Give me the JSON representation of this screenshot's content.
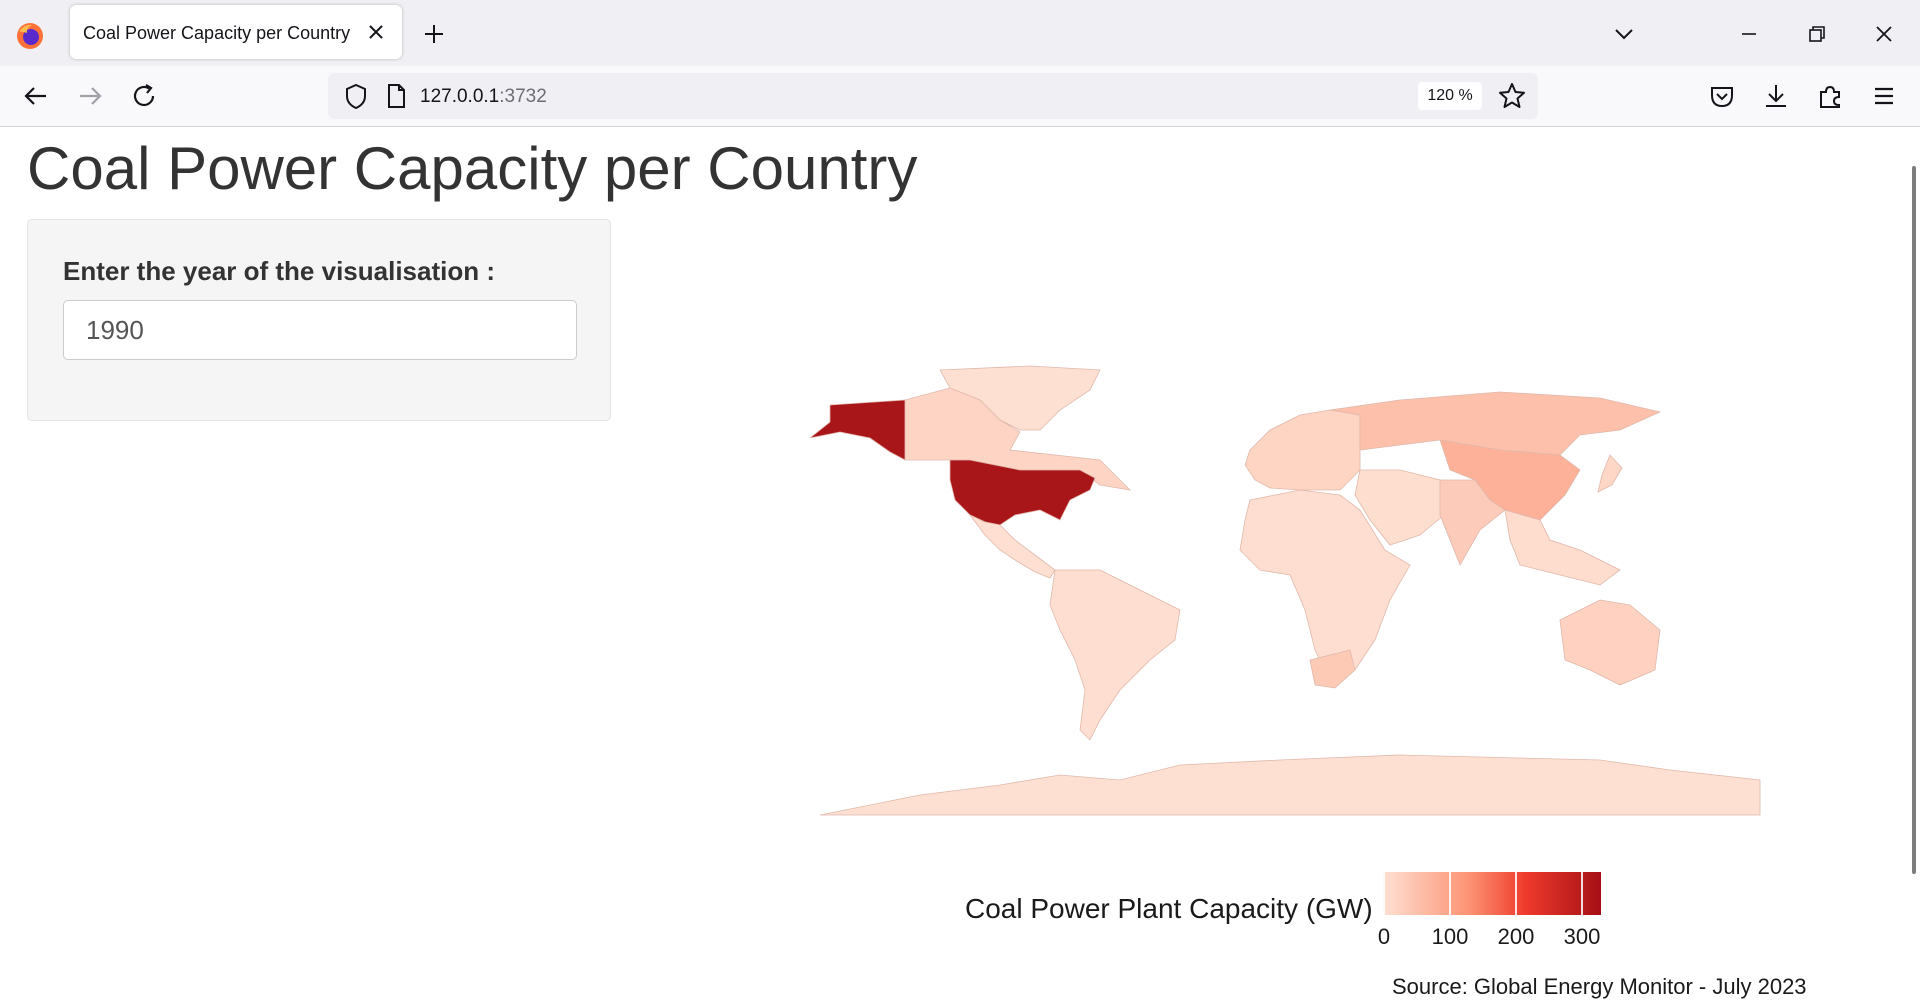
{
  "browser": {
    "tab_title": "Coal Power Capacity per Country",
    "url_host": "127.0.0.1",
    "url_port": ":3732",
    "zoom": "120 %"
  },
  "page": {
    "title": "Coal Power Capacity per Country",
    "year_label": "Enter the year of the visualisation :",
    "year_value": "1990",
    "source": "Source: Global Energy Monitor - July 2023"
  },
  "chart_data": {
    "type": "choropleth",
    "legend_title": "Coal Power Plant Capacity (GW)",
    "legend_ticks": [
      0,
      100,
      200,
      300
    ],
    "scale_range": [
      0,
      330
    ],
    "colors": {
      "low": "#fee0d2",
      "mid": "#fc9272",
      "high": "#a50f15"
    },
    "regions": [
      {
        "name": "United States",
        "value": 320
      },
      {
        "name": "Alaska",
        "value": 320
      },
      {
        "name": "China",
        "value": 80
      },
      {
        "name": "Russia",
        "value": 55
      },
      {
        "name": "India",
        "value": 35
      },
      {
        "name": "South Africa",
        "value": 38
      },
      {
        "name": "Australia",
        "value": 25
      },
      {
        "name": "Canada",
        "value": 18
      },
      {
        "name": "Europe",
        "value": 20
      },
      {
        "name": "Japan",
        "value": 15
      },
      {
        "name": "Africa",
        "value": 3
      },
      {
        "name": "South America",
        "value": 3
      },
      {
        "name": "Central America",
        "value": 2
      },
      {
        "name": "Middle East",
        "value": 4
      },
      {
        "name": "Southeast Asia",
        "value": 6
      },
      {
        "name": "Greenland",
        "value": 0
      },
      {
        "name": "Antarctica",
        "value": 0
      }
    ]
  }
}
